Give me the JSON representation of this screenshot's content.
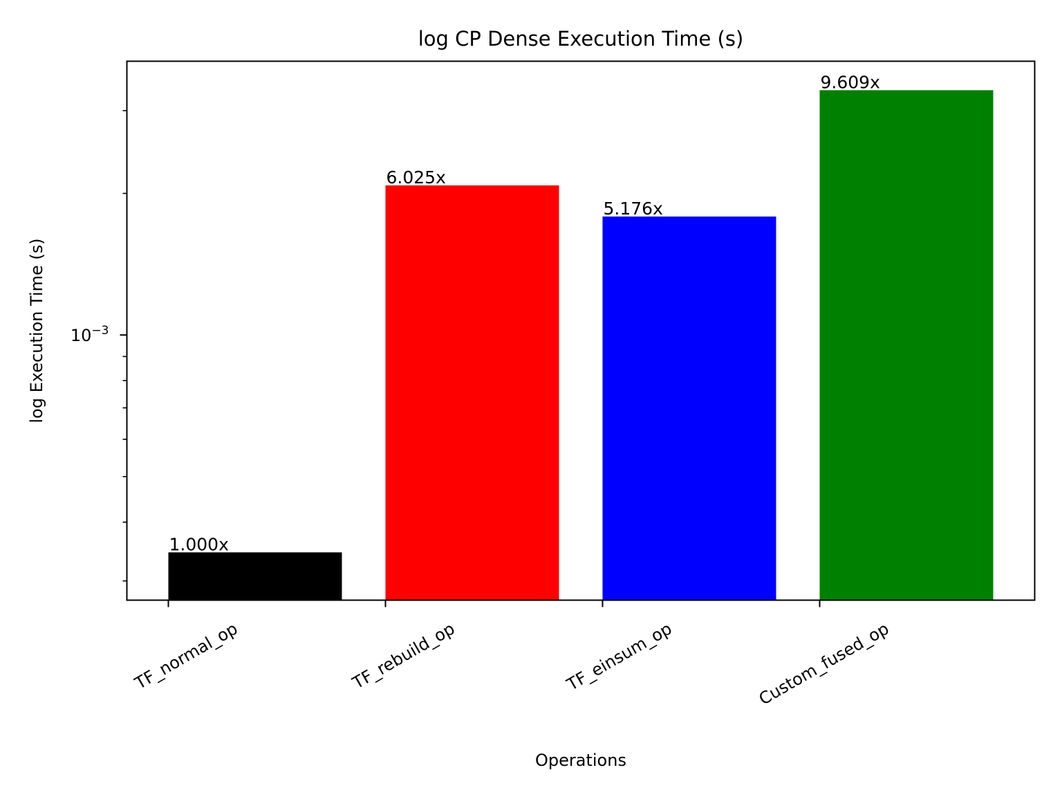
{
  "chart_data": {
    "type": "bar",
    "title": "log CP Dense Execution Time (s)",
    "xlabel": "Operations",
    "ylabel": "log Execution Time (s)",
    "yscale": "log",
    "ylim": [
      0.000273,
      0.00382
    ],
    "y_major_ticks": [
      {
        "value": 0.001,
        "label_base": "10",
        "label_exp": "−3"
      }
    ],
    "y_minor_ticks": [
      0.0003,
      0.0004,
      0.0005,
      0.0006,
      0.0007,
      0.0008,
      0.0009,
      0.002,
      0.003
    ],
    "categories": [
      "TF_normal_op",
      "TF_rebuild_op",
      "TF_einsum_op",
      "Custom_fused_op"
    ],
    "values": [
      0.000345,
      0.00208,
      0.001786,
      0.003315
    ],
    "colors": [
      "#000000",
      "#ff0000",
      "#0000ff",
      "#008000"
    ],
    "bar_labels": [
      "1.000x",
      "6.025x",
      "5.176x",
      "9.609x"
    ],
    "grid": false,
    "legend": false
  }
}
